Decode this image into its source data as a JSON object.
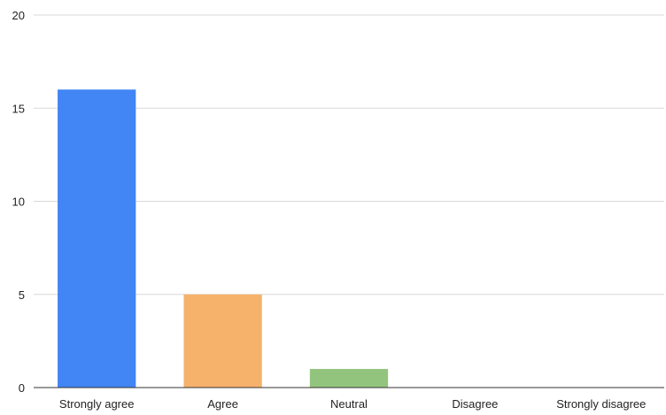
{
  "chart_data": {
    "type": "bar",
    "title": "",
    "xlabel": "",
    "ylabel": "",
    "categories": [
      "Strongly agree",
      "Agree",
      "Neutral",
      "Disagree",
      "Strongly disagree"
    ],
    "values": [
      16,
      5,
      1,
      0,
      0
    ],
    "colors": [
      "#4285f4",
      "#f6b26b",
      "#93c47d",
      "#4285f4",
      "#4285f4"
    ],
    "ylim": [
      0,
      20
    ],
    "yticks": [
      0,
      5,
      10,
      15,
      20
    ],
    "grid": true,
    "legend": "none"
  }
}
